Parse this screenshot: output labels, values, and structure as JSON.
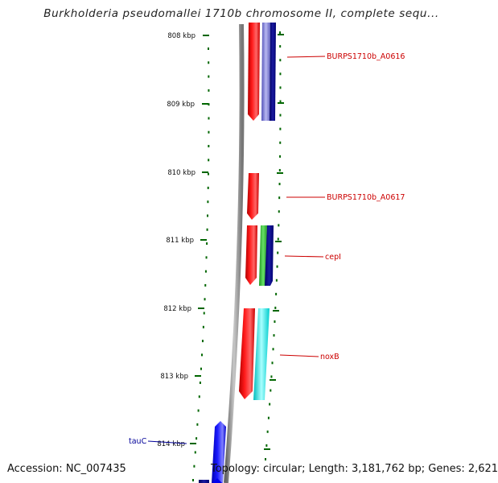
{
  "header": {
    "title": "Burkholderia pseudomallei 1710b chromosome II, complete sequ..."
  },
  "scale": {
    "ticks": [
      "808 kbp",
      "809 kbp",
      "810 kbp",
      "811 kbp",
      "812 kbp",
      "813 kbp",
      "814 kbp"
    ]
  },
  "features": [
    {
      "label": "BURPS1710b_A0616",
      "color": "#cc0000"
    },
    {
      "label": "BURPS1710b_A0617",
      "color": "#cc0000"
    },
    {
      "label": "cepI",
      "color": "#cc0000"
    },
    {
      "label": "noxB",
      "color": "#cc0000"
    },
    {
      "label": "tauC",
      "color": "#000099"
    }
  ],
  "footer": {
    "accession": "Accession: NC_007435",
    "topology": "Topology: circular; Length: 3,181,762 bp; Genes: 2,621"
  },
  "colors": {
    "forward_cds": "#ff0000",
    "reverse_cds": "#0000ff",
    "dark_blue": "#000080",
    "green": "#33cc33",
    "cyan": "#00e5e5",
    "light_blue": "#7070cc",
    "tick_green": "#006600",
    "backbone": "#888888",
    "label_red": "#cc0000"
  }
}
